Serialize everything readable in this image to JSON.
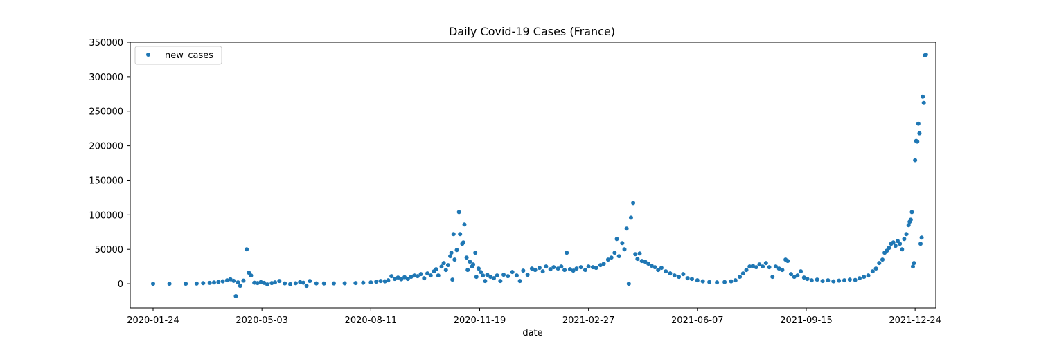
{
  "chart_data": {
    "type": "scatter",
    "title": "Daily Covid-19 Cases (France)",
    "xlabel": "date",
    "ylabel": "",
    "xlim": [
      "2020-01-03",
      "2022-01-12"
    ],
    "ylim": [
      -35000,
      350000
    ],
    "x_ticks": [
      "2020-01-24",
      "2020-05-03",
      "2020-08-11",
      "2020-11-19",
      "2021-02-27",
      "2021-06-07",
      "2021-09-15",
      "2021-12-24"
    ],
    "y_ticks": [
      0,
      50000,
      100000,
      150000,
      200000,
      250000,
      300000,
      350000
    ],
    "grid": false,
    "legend": {
      "position": "top-left",
      "entries": [
        "new_cases"
      ]
    },
    "series": [
      {
        "name": "new_cases",
        "color": "#1f77b4",
        "marker": "circle",
        "points": [
          [
            "2020-01-24",
            0
          ],
          [
            "2020-02-08",
            0
          ],
          [
            "2020-02-23",
            0
          ],
          [
            "2020-03-04",
            200
          ],
          [
            "2020-03-10",
            800
          ],
          [
            "2020-03-16",
            1200
          ],
          [
            "2020-03-20",
            1800
          ],
          [
            "2020-03-24",
            2500
          ],
          [
            "2020-03-28",
            3500
          ],
          [
            "2020-04-01",
            5000
          ],
          [
            "2020-04-04",
            6500
          ],
          [
            "2020-04-07",
            4200
          ],
          [
            "2020-04-09",
            -18000
          ],
          [
            "2020-04-11",
            2000
          ],
          [
            "2020-04-13",
            -3000
          ],
          [
            "2020-04-16",
            4500
          ],
          [
            "2020-04-19",
            50000
          ],
          [
            "2020-04-21",
            16000
          ],
          [
            "2020-04-23",
            12000
          ],
          [
            "2020-04-26",
            1500
          ],
          [
            "2020-04-29",
            1000
          ],
          [
            "2020-05-02",
            2500
          ],
          [
            "2020-05-05",
            1200
          ],
          [
            "2020-05-08",
            -1000
          ],
          [
            "2020-05-12",
            1000
          ],
          [
            "2020-05-15",
            2000
          ],
          [
            "2020-05-19",
            4000
          ],
          [
            "2020-05-24",
            500
          ],
          [
            "2020-05-29",
            -500
          ],
          [
            "2020-06-03",
            700
          ],
          [
            "2020-06-07",
            2500
          ],
          [
            "2020-06-10",
            1500
          ],
          [
            "2020-06-13",
            -3000
          ],
          [
            "2020-06-16",
            4000
          ],
          [
            "2020-06-22",
            500
          ],
          [
            "2020-06-29",
            300
          ],
          [
            "2020-07-08",
            500
          ],
          [
            "2020-07-18",
            600
          ],
          [
            "2020-07-28",
            1000
          ],
          [
            "2020-08-04",
            1500
          ],
          [
            "2020-08-11",
            2000
          ],
          [
            "2020-08-16",
            3000
          ],
          [
            "2020-08-20",
            4000
          ],
          [
            "2020-08-24",
            3500
          ],
          [
            "2020-08-27",
            5000
          ],
          [
            "2020-08-30",
            11000
          ],
          [
            "2020-09-02",
            7000
          ],
          [
            "2020-09-05",
            9000
          ],
          [
            "2020-09-08",
            6500
          ],
          [
            "2020-09-11",
            9500
          ],
          [
            "2020-09-14",
            7000
          ],
          [
            "2020-09-17",
            10000
          ],
          [
            "2020-09-20",
            12000
          ],
          [
            "2020-09-23",
            11000
          ],
          [
            "2020-09-26",
            14000
          ],
          [
            "2020-09-29",
            8000
          ],
          [
            "2020-10-02",
            15000
          ],
          [
            "2020-10-05",
            12000
          ],
          [
            "2020-10-08",
            18000
          ],
          [
            "2020-10-10",
            21000
          ],
          [
            "2020-10-12",
            12000
          ],
          [
            "2020-10-15",
            25000
          ],
          [
            "2020-10-17",
            30000
          ],
          [
            "2020-10-19",
            20000
          ],
          [
            "2020-10-21",
            27000
          ],
          [
            "2020-10-23",
            40000
          ],
          [
            "2020-10-24",
            45000
          ],
          [
            "2020-10-25",
            6000
          ],
          [
            "2020-10-26",
            72000
          ],
          [
            "2020-10-27",
            35000
          ],
          [
            "2020-10-29",
            49000
          ],
          [
            "2020-10-31",
            104000
          ],
          [
            "2020-11-01",
            72000
          ],
          [
            "2020-11-03",
            58000
          ],
          [
            "2020-11-04",
            60000
          ],
          [
            "2020-11-05",
            86000
          ],
          [
            "2020-11-07",
            38000
          ],
          [
            "2020-11-08",
            20000
          ],
          [
            "2020-11-10",
            32000
          ],
          [
            "2020-11-12",
            25000
          ],
          [
            "2020-11-13",
            28000
          ],
          [
            "2020-11-15",
            45000
          ],
          [
            "2020-11-16",
            10000
          ],
          [
            "2020-11-18",
            22000
          ],
          [
            "2020-11-20",
            17000
          ],
          [
            "2020-11-22",
            12000
          ],
          [
            "2020-11-24",
            4000
          ],
          [
            "2020-11-26",
            13000
          ],
          [
            "2020-11-29",
            10000
          ],
          [
            "2020-12-02",
            8000
          ],
          [
            "2020-12-05",
            12000
          ],
          [
            "2020-12-08",
            4000
          ],
          [
            "2020-12-11",
            13000
          ],
          [
            "2020-12-15",
            11000
          ],
          [
            "2020-12-19",
            17000
          ],
          [
            "2020-12-23",
            12000
          ],
          [
            "2020-12-26",
            4000
          ],
          [
            "2020-12-29",
            19000
          ],
          [
            "2021-01-02",
            13000
          ],
          [
            "2021-01-06",
            22000
          ],
          [
            "2021-01-09",
            20000
          ],
          [
            "2021-01-13",
            23000
          ],
          [
            "2021-01-16",
            18000
          ],
          [
            "2021-01-19",
            25000
          ],
          [
            "2021-01-23",
            21000
          ],
          [
            "2021-01-26",
            24000
          ],
          [
            "2021-01-30",
            22000
          ],
          [
            "2021-02-02",
            25000
          ],
          [
            "2021-02-05",
            20000
          ],
          [
            "2021-02-07",
            45000
          ],
          [
            "2021-02-10",
            21000
          ],
          [
            "2021-02-13",
            19000
          ],
          [
            "2021-02-16",
            22000
          ],
          [
            "2021-02-20",
            24000
          ],
          [
            "2021-02-24",
            20000
          ],
          [
            "2021-02-27",
            25000
          ],
          [
            "2021-03-03",
            24000
          ],
          [
            "2021-03-06",
            23000
          ],
          [
            "2021-03-10",
            27000
          ],
          [
            "2021-03-13",
            29000
          ],
          [
            "2021-03-17",
            35000
          ],
          [
            "2021-03-20",
            38000
          ],
          [
            "2021-03-23",
            45000
          ],
          [
            "2021-03-25",
            65000
          ],
          [
            "2021-03-27",
            40000
          ],
          [
            "2021-03-30",
            59000
          ],
          [
            "2021-04-01",
            50000
          ],
          [
            "2021-04-03",
            80000
          ],
          [
            "2021-04-05",
            0
          ],
          [
            "2021-04-07",
            96000
          ],
          [
            "2021-04-09",
            117000
          ],
          [
            "2021-04-11",
            43000
          ],
          [
            "2021-04-13",
            36000
          ],
          [
            "2021-04-15",
            44000
          ],
          [
            "2021-04-17",
            33000
          ],
          [
            "2021-04-20",
            32000
          ],
          [
            "2021-04-23",
            29000
          ],
          [
            "2021-04-26",
            26000
          ],
          [
            "2021-04-29",
            24000
          ],
          [
            "2021-05-02",
            20000
          ],
          [
            "2021-05-05",
            23000
          ],
          [
            "2021-05-09",
            18000
          ],
          [
            "2021-05-13",
            15000
          ],
          [
            "2021-05-17",
            12000
          ],
          [
            "2021-05-21",
            10000
          ],
          [
            "2021-05-25",
            14000
          ],
          [
            "2021-05-29",
            8000
          ],
          [
            "2021-06-02",
            7000
          ],
          [
            "2021-06-07",
            5000
          ],
          [
            "2021-06-12",
            3500
          ],
          [
            "2021-06-18",
            2500
          ],
          [
            "2021-06-25",
            2000
          ],
          [
            "2021-07-02",
            2500
          ],
          [
            "2021-07-08",
            3500
          ],
          [
            "2021-07-12",
            5000
          ],
          [
            "2021-07-16",
            10000
          ],
          [
            "2021-07-19",
            15000
          ],
          [
            "2021-07-22",
            20000
          ],
          [
            "2021-07-25",
            25000
          ],
          [
            "2021-07-28",
            26000
          ],
          [
            "2021-07-31",
            24000
          ],
          [
            "2021-08-03",
            28000
          ],
          [
            "2021-08-06",
            25000
          ],
          [
            "2021-08-09",
            30000
          ],
          [
            "2021-08-12",
            24000
          ],
          [
            "2021-08-15",
            10000
          ],
          [
            "2021-08-18",
            25000
          ],
          [
            "2021-08-21",
            22000
          ],
          [
            "2021-08-24",
            20000
          ],
          [
            "2021-08-27",
            35000
          ],
          [
            "2021-08-29",
            33000
          ],
          [
            "2021-09-01",
            14000
          ],
          [
            "2021-09-04",
            10000
          ],
          [
            "2021-09-07",
            12000
          ],
          [
            "2021-09-10",
            18000
          ],
          [
            "2021-09-13",
            9000
          ],
          [
            "2021-09-16",
            7000
          ],
          [
            "2021-09-20",
            5000
          ],
          [
            "2021-09-25",
            6000
          ],
          [
            "2021-09-30",
            4000
          ],
          [
            "2021-10-05",
            5000
          ],
          [
            "2021-10-10",
            3500
          ],
          [
            "2021-10-15",
            4500
          ],
          [
            "2021-10-20",
            5000
          ],
          [
            "2021-10-25",
            6000
          ],
          [
            "2021-10-30",
            5500
          ],
          [
            "2021-11-03",
            8000
          ],
          [
            "2021-11-07",
            10000
          ],
          [
            "2021-11-11",
            12000
          ],
          [
            "2021-11-15",
            18000
          ],
          [
            "2021-11-18",
            22000
          ],
          [
            "2021-11-21",
            30000
          ],
          [
            "2021-11-24",
            35000
          ],
          [
            "2021-11-26",
            45000
          ],
          [
            "2021-11-28",
            48000
          ],
          [
            "2021-11-30",
            52000
          ],
          [
            "2021-12-02",
            58000
          ],
          [
            "2021-12-04",
            60000
          ],
          [
            "2021-12-06",
            55000
          ],
          [
            "2021-12-08",
            62000
          ],
          [
            "2021-12-10",
            58000
          ],
          [
            "2021-12-12",
            50000
          ],
          [
            "2021-12-14",
            65000
          ],
          [
            "2021-12-16",
            72000
          ],
          [
            "2021-12-18",
            85000
          ],
          [
            "2021-12-19",
            90000
          ],
          [
            "2021-12-20",
            93000
          ],
          [
            "2021-12-21",
            104000
          ],
          [
            "2021-12-22",
            25000
          ],
          [
            "2021-12-23",
            30000
          ],
          [
            "2021-12-24",
            179000
          ],
          [
            "2021-12-25",
            207000
          ],
          [
            "2021-12-26",
            206000
          ],
          [
            "2021-12-27",
            232000
          ],
          [
            "2021-12-28",
            218000
          ],
          [
            "2021-12-29",
            58000
          ],
          [
            "2021-12-30",
            67000
          ],
          [
            "2021-12-31",
            271000
          ],
          [
            "2022-01-01",
            262000
          ],
          [
            "2022-01-02",
            331000
          ],
          [
            "2022-01-03",
            332000
          ]
        ]
      }
    ]
  }
}
